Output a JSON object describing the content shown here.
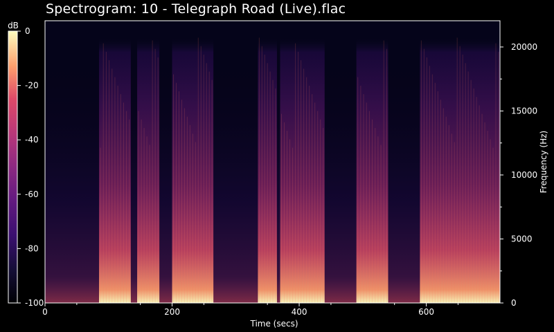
{
  "title": "Spectrogram: 10 - Telegraph Road (Live).flac",
  "chart_data": {
    "type": "heatmap",
    "title": "Spectrogram: 10 - Telegraph Road (Live).flac",
    "xlabel": "Time (secs)",
    "ylabel": "Frequency (Hz)",
    "colorbar_label": "dB",
    "xlim": [
      0,
      716
    ],
    "ylim": [
      0,
      22050
    ],
    "clim": [
      -100,
      0
    ],
    "x_ticks": [
      0,
      200,
      400,
      600
    ],
    "y_ticks": [
      0,
      5000,
      10000,
      15000,
      20000
    ],
    "colorbar_ticks": [
      0,
      -20,
      -40,
      -60,
      -80,
      -100
    ],
    "colormap": "magma",
    "active_segments_secs": [
      [
        85,
        135
      ],
      [
        145,
        180
      ],
      [
        200,
        265
      ],
      [
        335,
        365
      ],
      [
        370,
        440
      ],
      [
        490,
        540
      ],
      [
        590,
        716
      ]
    ]
  }
}
